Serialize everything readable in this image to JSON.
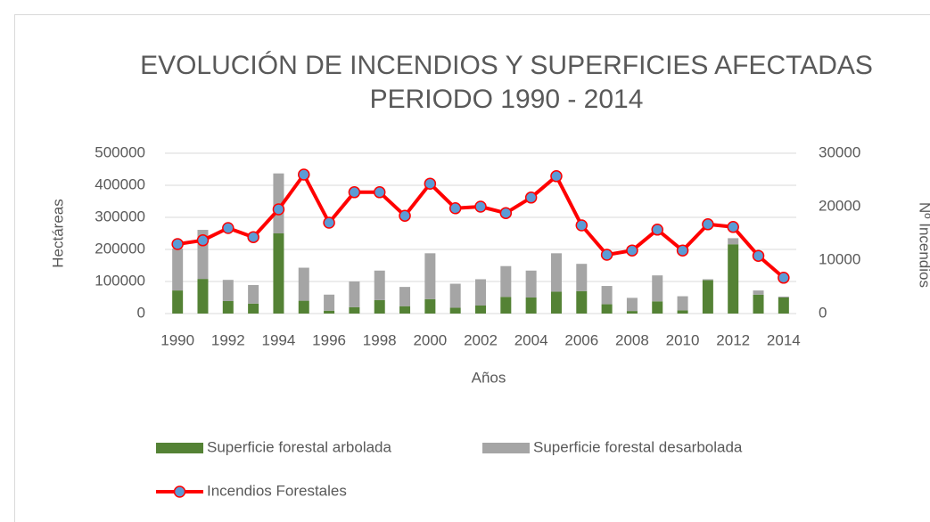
{
  "chart_data": {
    "type": "bar_line",
    "title": [
      "EVOLUCIÓN DE INCENDIOS Y SUPERFICIES AFECTADAS",
      "PERIODO 1990 - 2014"
    ],
    "xlabel": "Años",
    "ylabel": "Hectáreas",
    "y2label": "Nº Incendios",
    "categories": [
      "1990",
      null,
      "1992",
      null,
      "1994",
      null,
      "1996",
      null,
      "1998",
      null,
      "2000",
      null,
      "2002",
      null,
      "2004",
      null,
      "2006",
      null,
      "2008",
      null,
      "2010",
      null,
      "2012",
      null,
      "2014"
    ],
    "series": [
      {
        "name": "Superficie forestal arbolada",
        "type": "bar",
        "stack": true,
        "color": "#548235",
        "values": [
          72000,
          108000,
          39000,
          31000,
          250000,
          40000,
          9000,
          20000,
          42000,
          23000,
          45000,
          18000,
          25000,
          52000,
          50000,
          68000,
          70000,
          29000,
          8000,
          38000,
          10000,
          104000,
          216000,
          59000,
          50000
        ]
      },
      {
        "name": "Superficie forestal desarbolada",
        "type": "bar",
        "stack": true,
        "color": "#a5a5a5",
        "values": [
          131000,
          153000,
          66000,
          58000,
          187000,
          103000,
          50000,
          80000,
          92000,
          60000,
          143000,
          75000,
          82000,
          96000,
          84000,
          120000,
          85000,
          57000,
          41000,
          81000,
          44000,
          3000,
          19000,
          13000,
          3000
        ]
      },
      {
        "name": "Incendios Forestales",
        "type": "line",
        "axis": "y2",
        "color": "#ff0000",
        "marker_color": "#5b9bd5",
        "values": [
          13000,
          13700,
          16000,
          14300,
          19500,
          26000,
          17000,
          22700,
          22700,
          18300,
          24300,
          19700,
          20000,
          18800,
          21700,
          25700,
          16500,
          11000,
          11800,
          15700,
          11800,
          16700,
          16200,
          10800,
          6700
        ]
      }
    ],
    "ylim": [
      0,
      500000
    ],
    "yticks": [
      0,
      100000,
      200000,
      300000,
      400000,
      500000
    ],
    "y2lim": [
      0,
      30000
    ],
    "y2ticks": [
      0,
      10000,
      20000,
      30000
    ],
    "grid": true,
    "legend": "bottom"
  }
}
